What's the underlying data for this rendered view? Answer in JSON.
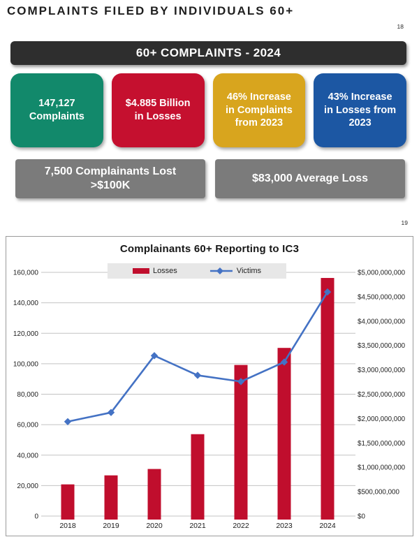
{
  "header": {
    "title": "COMPLAINTS FILED BY INDIVIDUALS 60+",
    "slide_number": "18"
  },
  "banner": {
    "label": "60+ COMPLAINTS - 2024",
    "bg": "#2e2e2e"
  },
  "stat_boxes": [
    {
      "id": "complaints",
      "text": "147,127\nComplaints",
      "bg": "#12896b"
    },
    {
      "id": "losses",
      "text": "$4.885 Billion\nin Losses",
      "bg": "#c5102f"
    },
    {
      "id": "complaint-increase",
      "text": "46% Increase\nin Complaints\nfrom 2023",
      "bg": "#d8a51e"
    },
    {
      "id": "loss-increase",
      "text": "43% Increase\nin Losses from\n2023",
      "bg": "#1c57a3"
    }
  ],
  "callouts": [
    {
      "text": "7,500 Complainants Lost\n>$100K",
      "bg": "#7b7b7b"
    },
    {
      "text": "$83,000 Average Loss",
      "bg": "#7b7b7b"
    }
  ],
  "chart": {
    "slide_number": "19"
  },
  "chart_data": {
    "type": "bar+line",
    "title": "Complainants 60+ Reporting to IC3",
    "categories": [
      "2018",
      "2019",
      "2020",
      "2021",
      "2022",
      "2023",
      "2024"
    ],
    "series": [
      {
        "name": "Losses",
        "type": "bar",
        "axis": "right",
        "color": "#c00e2d",
        "values": [
          650000000,
          835000000,
          966000000,
          1680000000,
          3100000000,
          3450000000,
          4885000000
        ]
      },
      {
        "name": "Victims",
        "type": "line",
        "axis": "left",
        "color": "#4472c4",
        "values": [
          62000,
          68000,
          105300,
          92400,
          88300,
          101100,
          147127
        ]
      }
    ],
    "left_axis": {
      "min": 0,
      "max": 160000,
      "step": 20000,
      "prefix": ""
    },
    "right_axis": {
      "min": 0,
      "max": 5000000000,
      "step": 500000000,
      "prefix": "$"
    },
    "grid": true,
    "legend_position": "top-center",
    "gridline_color": "#c3c3c3"
  }
}
